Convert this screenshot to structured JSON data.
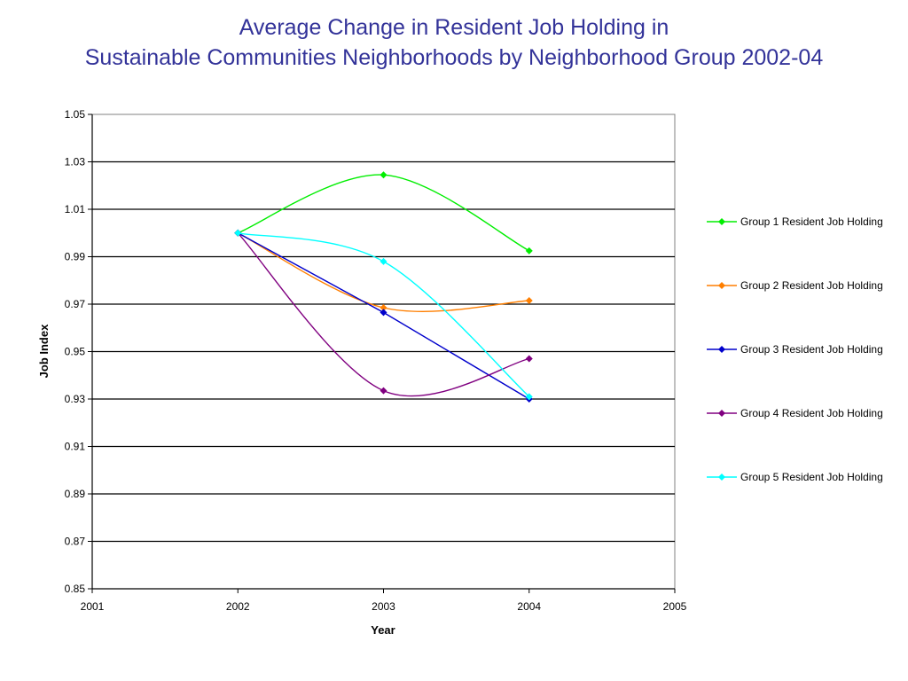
{
  "chart_data": {
    "type": "line",
    "title_line1": "Average Change in Resident Job Holding in",
    "title_line2": "Sustainable Communities Neighborhoods by Neighborhood Group 2002-04",
    "xlabel": "Year",
    "ylabel": "Job Index",
    "xlim": [
      2001,
      2005
    ],
    "ylim": [
      0.85,
      1.05
    ],
    "x_ticks": [
      "2001",
      "2002",
      "2003",
      "2004",
      "2005"
    ],
    "y_ticks": [
      "1.05",
      "1.03",
      "1.01",
      "0.99",
      "0.97",
      "0.95",
      "0.93",
      "0.91",
      "0.89",
      "0.87",
      "0.85"
    ],
    "grid": true,
    "smooth": true,
    "legend_position": "right",
    "x": [
      2002,
      2003,
      2004
    ],
    "series": [
      {
        "name": "Group 1 Resident Job Holding",
        "color": "#00ee00",
        "values": [
          1.0,
          1.0245,
          0.9925
        ]
      },
      {
        "name": "Group 2 Resident Job Holding",
        "color": "#ff7f00",
        "values": [
          1.0,
          0.9685,
          0.9715
        ]
      },
      {
        "name": "Group 3 Resident Job Holding",
        "color": "#0000cc",
        "values": [
          1.0,
          0.9665,
          0.93
        ],
        "smooth": false
      },
      {
        "name": "Group 4 Resident Job Holding",
        "color": "#800080",
        "values": [
          1.0,
          0.9335,
          0.947
        ]
      },
      {
        "name": "Group 5 Resident Job Holding",
        "color": "#00ffff",
        "values": [
          1.0,
          0.988,
          0.931
        ]
      }
    ]
  }
}
